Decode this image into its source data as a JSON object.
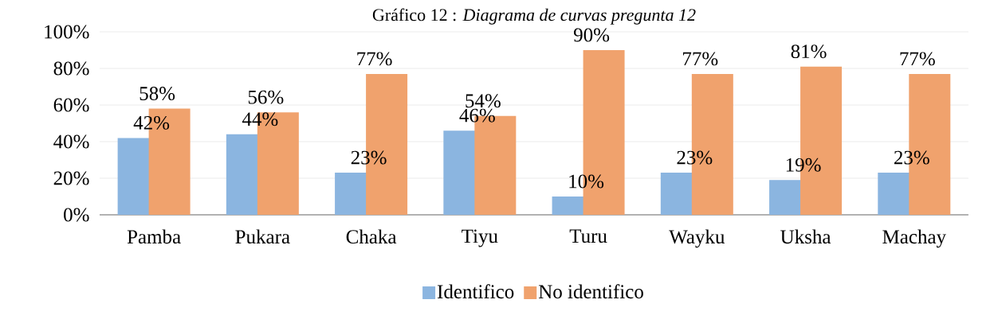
{
  "chart_data": {
    "type": "bar",
    "title": "Gráfico 12 : *Diagrama de curvas pregunta 12*",
    "categories": [
      "Pamba",
      "Pukara",
      "Chaka",
      "Tiyu",
      "Turu",
      "Wayku",
      "Uksha",
      "Machay"
    ],
    "series": [
      {
        "name": "Identifico",
        "color": "#8bb5e0",
        "values": [
          42,
          44,
          23,
          46,
          10,
          23,
          19,
          23
        ],
        "value_labels": [
          "42%",
          "44%",
          "23%",
          "46%",
          "10%",
          "23%",
          "19%",
          "23%"
        ]
      },
      {
        "name": "No identifico",
        "color": "#f0a26d",
        "values": [
          58,
          56,
          77,
          54,
          90,
          77,
          81,
          77
        ],
        "value_labels": [
          "58%",
          "56%",
          "77%",
          "54%",
          "90%",
          "77%",
          "81%",
          "77%"
        ]
      }
    ],
    "ylim": [
      0,
      100
    ],
    "yticks": [
      {
        "value": 0,
        "label": "0%"
      },
      {
        "value": 20,
        "label": "20%"
      },
      {
        "value": 40,
        "label": "40%"
      },
      {
        "value": 60,
        "label": "60%"
      },
      {
        "value": 80,
        "label": "80%"
      },
      {
        "value": 100,
        "label": "100%"
      }
    ],
    "grid": "y",
    "legend": "bottom"
  }
}
